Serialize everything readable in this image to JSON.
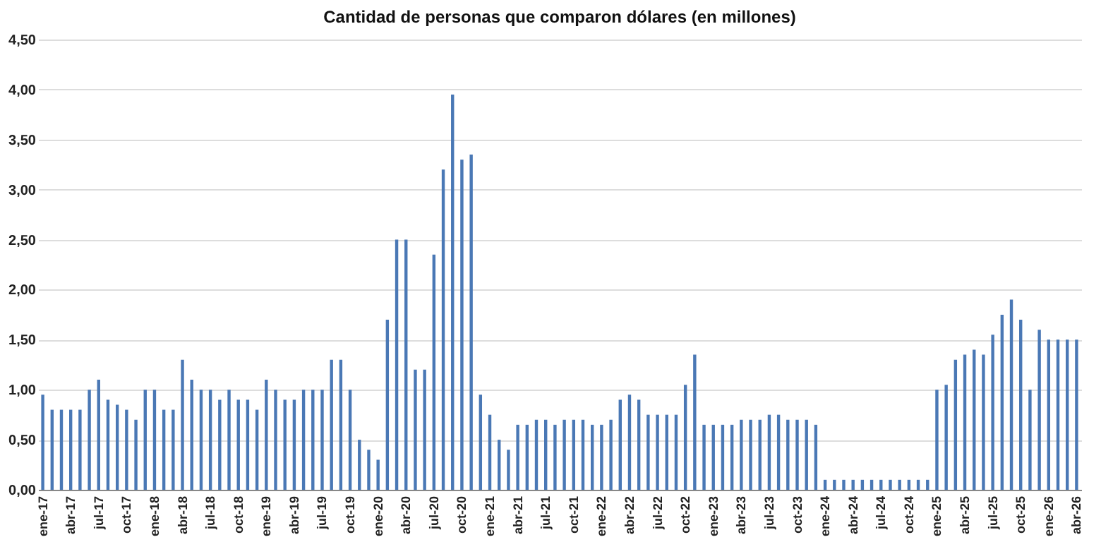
{
  "chart_data": {
    "type": "bar",
    "title": "Cantidad de personas que comparon dólares (en millones)",
    "categories": [
      "ene-17",
      null,
      null,
      "abr-17",
      null,
      null,
      "jul-17",
      null,
      null,
      "oct-17",
      null,
      null,
      "ene-18",
      null,
      null,
      "abr-18",
      null,
      null,
      "jul-18",
      null,
      null,
      "oct-18",
      null,
      null,
      "ene-19",
      null,
      null,
      "abr-19",
      null,
      null,
      "jul-19",
      null,
      null,
      "oct-19",
      null,
      null,
      "ene-20",
      null,
      null,
      "abr-20",
      null,
      null,
      "jul-20",
      null,
      null,
      "oct-20",
      null,
      null,
      "ene-21",
      null,
      null,
      "abr-21",
      null,
      null,
      "jul-21",
      null,
      null,
      "oct-21",
      null,
      null,
      "ene-22",
      null,
      null,
      "abr-22",
      null,
      null,
      "jul-22",
      null,
      null,
      "oct-22",
      null,
      null,
      "ene-23",
      null,
      null,
      "abr-23",
      null,
      null,
      "jul-23",
      null,
      null,
      "oct-23",
      null,
      null,
      "ene-24",
      null,
      null,
      "abr-24",
      null,
      null,
      "jul-24",
      null,
      null,
      "oct-24",
      null,
      null,
      "ene-25",
      null,
      null,
      "abr-25",
      null,
      null,
      "jul-25",
      null,
      null,
      "oct-25",
      null,
      null,
      "ene-26",
      null,
      null,
      "abr-26"
    ],
    "values": [
      0.95,
      0.8,
      0.8,
      0.8,
      0.8,
      1.0,
      1.1,
      0.9,
      0.85,
      0.8,
      0.7,
      1.0,
      1.0,
      0.8,
      0.8,
      1.3,
      1.1,
      1.0,
      1.0,
      0.9,
      1.0,
      0.9,
      0.9,
      0.8,
      1.1,
      1.0,
      0.9,
      0.9,
      1.0,
      1.0,
      1.0,
      1.3,
      1.3,
      1.0,
      0.5,
      0.4,
      0.3,
      1.7,
      2.5,
      2.5,
      1.2,
      1.2,
      2.35,
      3.2,
      3.95,
      3.3,
      3.35,
      0.95,
      0.75,
      0.5,
      0.4,
      0.65,
      0.65,
      0.7,
      0.7,
      0.65,
      0.7,
      0.7,
      0.7,
      0.65,
      0.65,
      0.7,
      0.9,
      0.95,
      0.9,
      0.75,
      0.75,
      0.75,
      0.75,
      1.05,
      1.35,
      0.65,
      0.65,
      0.65,
      0.65,
      0.7,
      0.7,
      0.7,
      0.75,
      0.75,
      0.7,
      0.7,
      0.7,
      0.65,
      0.1,
      0.1,
      0.1,
      0.1,
      0.1,
      0.1,
      0.1,
      0.1,
      0.1,
      0.1,
      0.1,
      0.1,
      1.0,
      1.05,
      1.3,
      1.35,
      1.4,
      1.35,
      1.55,
      1.75,
      1.9,
      1.7,
      1.0,
      1.6,
      1.5,
      1.5,
      1.5,
      1.5
    ],
    "color": "#4a78b5",
    "ylim": [
      0,
      4.5
    ],
    "yticks": [
      {
        "value": 0,
        "label": "0,00"
      },
      {
        "value": 0.5,
        "label": "0,50"
      },
      {
        "value": 1,
        "label": "1,00"
      },
      {
        "value": 1.5,
        "label": "1,50"
      },
      {
        "value": 2,
        "label": "2,00"
      },
      {
        "value": 2.5,
        "label": "2,50"
      },
      {
        "value": 3,
        "label": "3,00"
      },
      {
        "value": 3.5,
        "label": "3,50"
      },
      {
        "value": 4,
        "label": "4,00"
      },
      {
        "value": 4.5,
        "label": "4,50"
      }
    ],
    "grid": "y"
  }
}
